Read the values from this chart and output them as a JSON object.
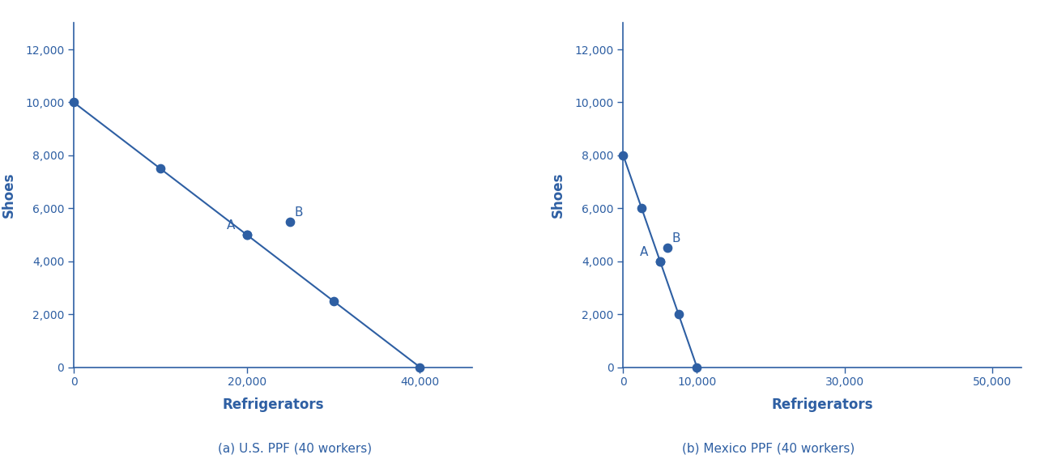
{
  "color": "#2E5FA3",
  "background": "#ffffff",
  "us": {
    "ppf_x": [
      0,
      10000,
      20000,
      30000,
      40000
    ],
    "ppf_y": [
      10000,
      7500,
      5000,
      2500,
      0
    ],
    "point_A": [
      20000,
      5000
    ],
    "point_B": [
      25000,
      5500
    ],
    "xlim": [
      0,
      46000
    ],
    "ylim": [
      0,
      13000
    ],
    "xticks": [
      0,
      20000,
      40000
    ],
    "yticks": [
      0,
      2000,
      4000,
      6000,
      8000,
      10000,
      12000
    ],
    "xlabel": "Refrigerators",
    "ylabel": "Shoes",
    "caption": "(a) U.S. PPF (40 workers)"
  },
  "mexico": {
    "ppf_x": [
      0,
      2500,
      5000,
      7500,
      10000
    ],
    "ppf_y": [
      8000,
      6000,
      4000,
      2000,
      0
    ],
    "point_A": [
      5000,
      4000
    ],
    "point_B": [
      6000,
      4500
    ],
    "xlim": [
      0,
      54000
    ],
    "ylim": [
      0,
      13000
    ],
    "xticks": [
      0,
      10000,
      30000,
      50000
    ],
    "yticks": [
      0,
      2000,
      4000,
      6000,
      8000,
      10000,
      12000
    ],
    "xlabel": "Refrigerators",
    "ylabel": "Shoes",
    "caption": "(b) Mexico PPF (40 workers)"
  }
}
